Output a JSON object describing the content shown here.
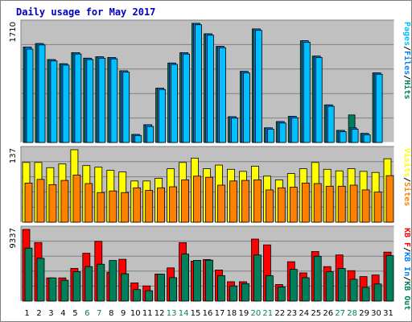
{
  "title": "Daily usage for May 2017",
  "colors": {
    "background": "#ffffff",
    "panel": "#c0c0c0",
    "grid": "#808080",
    "pages": "#00c0ff",
    "files": "#0080ff",
    "hits": "#00805a",
    "visits": "#ffff00",
    "sites": "#ff8000",
    "kb_in": "#ff0000",
    "kb_out": "#00805a",
    "weekday_label": "#000000",
    "weekend_label": "#00805a"
  },
  "chart_data": [
    {
      "type": "bar",
      "panel": "hits",
      "y_max_label": "1710",
      "ymax": 1710,
      "legend": [
        "Pages",
        "Files",
        "Hits"
      ],
      "categories": [
        "1",
        "2",
        "3",
        "4",
        "5",
        "6",
        "7",
        "8",
        "9",
        "10",
        "11",
        "12",
        "13",
        "14",
        "15",
        "16",
        "17",
        "18",
        "19",
        "20",
        "21",
        "22",
        "23",
        "24",
        "25",
        "26",
        "27",
        "28",
        "29",
        "30",
        "31"
      ],
      "series": [
        {
          "name": "Hits",
          "values": [
            1370,
            1420,
            1190,
            1130,
            1290,
            1210,
            1230,
            1220,
            1030,
            115,
            255,
            780,
            1140,
            1290,
            1710,
            1560,
            1380,
            370,
            1020,
            1630,
            210,
            300,
            375,
            1460,
            1240,
            540,
            175,
            395,
            130,
            1000,
            0
          ]
        },
        {
          "name": "Files",
          "values": [
            1370,
            1420,
            1190,
            1130,
            1290,
            1210,
            1230,
            1220,
            1030,
            115,
            255,
            780,
            1140,
            1290,
            1710,
            1560,
            1380,
            370,
            1020,
            1630,
            210,
            300,
            375,
            1460,
            1240,
            540,
            175,
            210,
            130,
            1000,
            0
          ]
        },
        {
          "name": "Pages",
          "values": [
            1340,
            1400,
            1170,
            1110,
            1270,
            1190,
            1210,
            1200,
            1010,
            100,
            230,
            760,
            1120,
            1270,
            1690,
            1540,
            1360,
            350,
            1000,
            1610,
            190,
            280,
            355,
            1440,
            1220,
            520,
            155,
            190,
            110,
            980,
            0
          ]
        }
      ]
    },
    {
      "type": "bar",
      "panel": "visits",
      "y_max_label": "137",
      "ymax": 137,
      "legend": [
        "Visits",
        "Sites"
      ],
      "categories": [
        "1",
        "2",
        "3",
        "4",
        "5",
        "6",
        "7",
        "8",
        "9",
        "10",
        "11",
        "12",
        "13",
        "14",
        "15",
        "16",
        "17",
        "18",
        "19",
        "20",
        "21",
        "22",
        "23",
        "24",
        "25",
        "26",
        "27",
        "28",
        "29",
        "30",
        "31"
      ],
      "series": [
        {
          "name": "Visits",
          "values": [
            113,
            113,
            103,
            110,
            137,
            107,
            104,
            98,
            95,
            78,
            78,
            83,
            101,
            113,
            121,
            101,
            108,
            100,
            96,
            106,
            87,
            80,
            92,
            101,
            113,
            100,
            97,
            101,
            96,
            94,
            120
          ]
        },
        {
          "name": "Sites",
          "values": [
            74,
            81,
            71,
            79,
            89,
            73,
            56,
            59,
            56,
            65,
            60,
            65,
            67,
            80,
            87,
            85,
            70,
            78,
            79,
            80,
            61,
            65,
            66,
            74,
            73,
            68,
            68,
            70,
            61,
            57,
            88
          ]
        }
      ]
    },
    {
      "type": "bar",
      "panel": "kbytes",
      "y_max_label": "9337",
      "ymax": 9337,
      "legend": [
        "KB F",
        "KB In",
        "KB Out"
      ],
      "categories": [
        "1",
        "2",
        "3",
        "4",
        "5",
        "6",
        "7",
        "8",
        "9",
        "10",
        "11",
        "12",
        "13",
        "14",
        "15",
        "16",
        "17",
        "18",
        "19",
        "20",
        "21",
        "22",
        "23",
        "24",
        "25",
        "26",
        "27",
        "28",
        "29",
        "30",
        "31"
      ],
      "series": [
        {
          "name": "KB In",
          "values": [
            9337,
            7630,
            3020,
            3020,
            4260,
            6230,
            7780,
            3760,
            5440,
            2370,
            1970,
            3530,
            4320,
            7620,
            5200,
            5410,
            4050,
            2520,
            2520,
            8080,
            7320,
            2160,
            5130,
            3670,
            6460,
            4490,
            6010,
            3970,
            3190,
            3400,
            6380
          ]
        },
        {
          "name": "KB Out",
          "values": [
            6900,
            5570,
            3020,
            2720,
            3830,
            4490,
            4810,
            5290,
            3560,
            1500,
            1350,
            3500,
            3050,
            6130,
            5310,
            5330,
            3320,
            1970,
            2280,
            6000,
            3300,
            1850,
            4130,
            3040,
            5840,
            3820,
            4250,
            2840,
            1780,
            2220,
            5930
          ]
        }
      ]
    }
  ],
  "day_labels": [
    {
      "text": "1",
      "weekend": false
    },
    {
      "text": "2",
      "weekend": false
    },
    {
      "text": "3",
      "weekend": false
    },
    {
      "text": "4",
      "weekend": false
    },
    {
      "text": "5",
      "weekend": false
    },
    {
      "text": "6",
      "weekend": true
    },
    {
      "text": "7",
      "weekend": true
    },
    {
      "text": "8",
      "weekend": false
    },
    {
      "text": "9",
      "weekend": false
    },
    {
      "text": "10",
      "weekend": false
    },
    {
      "text": "11",
      "weekend": false
    },
    {
      "text": "12",
      "weekend": false
    },
    {
      "text": "13",
      "weekend": true
    },
    {
      "text": "14",
      "weekend": true
    },
    {
      "text": "15",
      "weekend": false
    },
    {
      "text": "16",
      "weekend": false
    },
    {
      "text": "17",
      "weekend": false
    },
    {
      "text": "18",
      "weekend": false
    },
    {
      "text": "19",
      "weekend": false
    },
    {
      "text": "20",
      "weekend": true
    },
    {
      "text": "21",
      "weekend": true
    },
    {
      "text": "22",
      "weekend": false
    },
    {
      "text": "23",
      "weekend": false
    },
    {
      "text": "24",
      "weekend": false
    },
    {
      "text": "25",
      "weekend": false
    },
    {
      "text": "26",
      "weekend": false
    },
    {
      "text": "27",
      "weekend": true
    },
    {
      "text": "28",
      "weekend": true
    },
    {
      "text": "29",
      "weekend": false
    },
    {
      "text": "30",
      "weekend": false
    },
    {
      "text": "31",
      "weekend": false
    }
  ]
}
